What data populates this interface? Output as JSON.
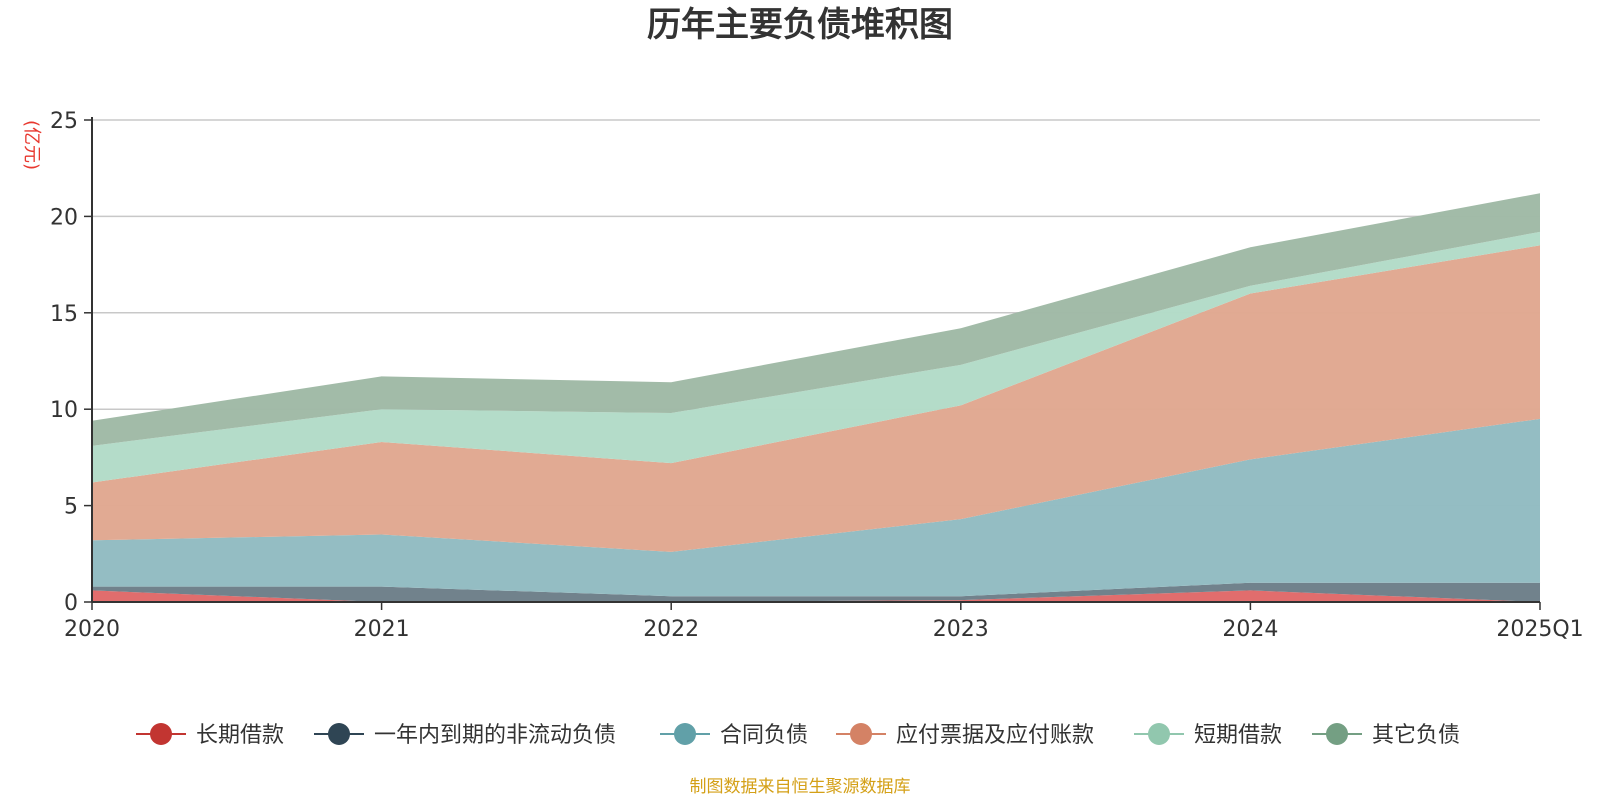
{
  "chart_data": {
    "type": "area",
    "stacked": true,
    "title": "历年主要负债堆积图",
    "ylabel": "(亿元)",
    "xlabel": "",
    "categories": [
      "2020",
      "2021",
      "2022",
      "2023",
      "2024",
      "2025Q1"
    ],
    "ylim": [
      0,
      25
    ],
    "yticks": [
      0,
      5,
      10,
      15,
      20,
      25
    ],
    "grid": true,
    "legend_position": "bottom",
    "series": [
      {
        "name": "长期借款",
        "color": "#c23531",
        "fill": "#e06a6a",
        "values": [
          0.6,
          0.0,
          0.0,
          0.1,
          0.6,
          0.0
        ]
      },
      {
        "name": "一年内到期的非流动负债",
        "color": "#2f4554",
        "fill": "#6e7f8a",
        "values": [
          0.2,
          0.8,
          0.3,
          0.2,
          0.4,
          1.0
        ]
      },
      {
        "name": "合同负债",
        "color": "#61a0a8",
        "fill": "#92bcc2",
        "values": [
          2.4,
          2.7,
          2.3,
          4.0,
          6.4,
          8.5
        ]
      },
      {
        "name": "应付票据及应付账款",
        "color": "#d48265",
        "fill": "#e0a891",
        "values": [
          3.0,
          4.8,
          4.6,
          5.9,
          8.6,
          9.0
        ]
      },
      {
        "name": "短期借款",
        "color": "#91c7ae",
        "fill": "#b3dbc8",
        "values": [
          1.9,
          1.7,
          2.6,
          2.1,
          0.4,
          0.7
        ]
      },
      {
        "name": "其它负债",
        "color": "#749f83",
        "fill": "#a0baa6",
        "values": [
          1.3,
          1.7,
          1.6,
          1.9,
          2.0,
          2.0
        ]
      }
    ]
  },
  "source_note": "制图数据来自恒生聚源数据库"
}
